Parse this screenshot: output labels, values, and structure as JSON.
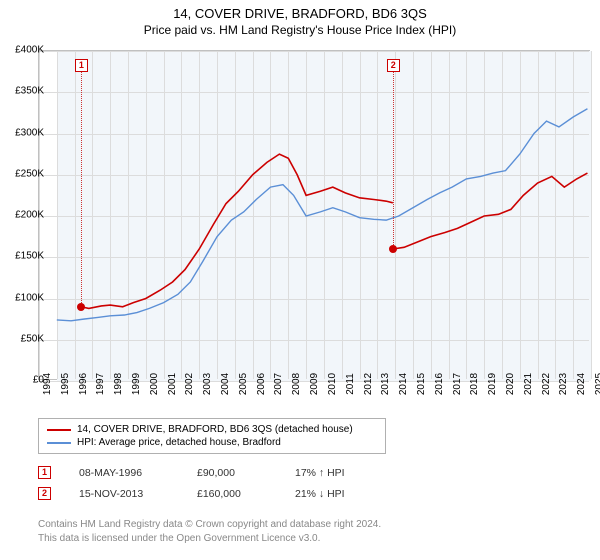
{
  "title": "14, COVER DRIVE, BRADFORD, BD6 3QS",
  "subtitle": "Price paid vs. HM Land Registry's House Price Index (HPI)",
  "chart": {
    "type": "line",
    "background_color": "#f2f6fa",
    "grid_color": "#dcdcdc",
    "border_color": "#c0c0c0",
    "x_start": 1994,
    "x_end": 2025,
    "y_min": 0,
    "y_max": 400000,
    "y_tick_step": 50000,
    "y_tick_labels": [
      "£0",
      "£50K",
      "£100K",
      "£150K",
      "£200K",
      "£250K",
      "£300K",
      "£350K",
      "£400K"
    ],
    "x_ticks": [
      1994,
      1995,
      1996,
      1997,
      1998,
      1999,
      2000,
      2001,
      2002,
      2003,
      2004,
      2005,
      2006,
      2007,
      2008,
      2009,
      2010,
      2011,
      2012,
      2013,
      2014,
      2015,
      2016,
      2017,
      2018,
      2019,
      2020,
      2021,
      2022,
      2023,
      2024,
      2025
    ],
    "series": [
      {
        "name": "14, COVER DRIVE, BRADFORD, BD6 3QS (detached house)",
        "color": "#cc0000",
        "width": 1.6,
        "segments": [
          [
            [
              1996.35,
              90000
            ],
            [
              1996.8,
              88000
            ],
            [
              1997.5,
              91000
            ],
            [
              1998,
              92000
            ],
            [
              1998.7,
              90000
            ],
            [
              1999.3,
              95000
            ],
            [
              2000,
              100000
            ],
            [
              2000.8,
              110000
            ],
            [
              2001.5,
              120000
            ],
            [
              2002.2,
              135000
            ],
            [
              2003,
              160000
            ],
            [
              2003.8,
              190000
            ],
            [
              2004.5,
              215000
            ],
            [
              2005.2,
              230000
            ],
            [
              2006,
              250000
            ],
            [
              2006.8,
              265000
            ],
            [
              2007.5,
              275000
            ],
            [
              2008,
              270000
            ],
            [
              2008.5,
              250000
            ],
            [
              2009,
              225000
            ],
            [
              2009.8,
              230000
            ],
            [
              2010.5,
              235000
            ],
            [
              2011.2,
              228000
            ],
            [
              2012,
              222000
            ],
            [
              2012.8,
              220000
            ],
            [
              2013.5,
              218000
            ],
            [
              2013.87,
              216000
            ]
          ],
          [
            [
              2013.87,
              160000
            ],
            [
              2014.5,
              162000
            ],
            [
              2015.2,
              168000
            ],
            [
              2016,
              175000
            ],
            [
              2016.8,
              180000
            ],
            [
              2017.5,
              185000
            ],
            [
              2018.2,
              192000
            ],
            [
              2019,
              200000
            ],
            [
              2019.8,
              202000
            ],
            [
              2020.5,
              208000
            ],
            [
              2021.2,
              225000
            ],
            [
              2022,
              240000
            ],
            [
              2022.8,
              248000
            ],
            [
              2023.5,
              235000
            ],
            [
              2024.2,
              245000
            ],
            [
              2024.8,
              252000
            ]
          ]
        ]
      },
      {
        "name": "HPI: Average price, detached house, Bradford",
        "color": "#5b8fd6",
        "width": 1.4,
        "segments": [
          [
            [
              1995,
              74000
            ],
            [
              1995.8,
              73000
            ],
            [
              1996.5,
              75000
            ],
            [
              1997.3,
              77000
            ],
            [
              1998,
              79000
            ],
            [
              1998.8,
              80000
            ],
            [
              1999.5,
              83000
            ],
            [
              2000.2,
              88000
            ],
            [
              2001,
              95000
            ],
            [
              2001.8,
              105000
            ],
            [
              2002.5,
              120000
            ],
            [
              2003.2,
              145000
            ],
            [
              2004,
              175000
            ],
            [
              2004.8,
              195000
            ],
            [
              2005.5,
              205000
            ],
            [
              2006.2,
              220000
            ],
            [
              2007,
              235000
            ],
            [
              2007.7,
              238000
            ],
            [
              2008.3,
              225000
            ],
            [
              2009,
              200000
            ],
            [
              2009.8,
              205000
            ],
            [
              2010.5,
              210000
            ],
            [
              2011.2,
              205000
            ],
            [
              2012,
              198000
            ],
            [
              2012.8,
              196000
            ],
            [
              2013.5,
              195000
            ],
            [
              2014.2,
              200000
            ],
            [
              2015,
              210000
            ],
            [
              2015.8,
              220000
            ],
            [
              2016.5,
              228000
            ],
            [
              2017.2,
              235000
            ],
            [
              2018,
              245000
            ],
            [
              2018.8,
              248000
            ],
            [
              2019.5,
              252000
            ],
            [
              2020.2,
              255000
            ],
            [
              2021,
              275000
            ],
            [
              2021.8,
              300000
            ],
            [
              2022.5,
              315000
            ],
            [
              2023.2,
              308000
            ],
            [
              2024,
              320000
            ],
            [
              2024.8,
              330000
            ]
          ]
        ]
      }
    ],
    "sale_markers": [
      {
        "num": "1",
        "year": 1996.35,
        "value": 90000
      },
      {
        "num": "2",
        "year": 2013.87,
        "value": 160000
      }
    ]
  },
  "legend": [
    {
      "color": "#cc0000",
      "label": "14, COVER DRIVE, BRADFORD, BD6 3QS (detached house)"
    },
    {
      "color": "#5b8fd6",
      "label": "HPI: Average price, detached house, Bradford"
    }
  ],
  "sales_rows": [
    {
      "num": "1",
      "date": "08-MAY-1996",
      "price": "£90,000",
      "diff": "17% ↑ HPI"
    },
    {
      "num": "2",
      "date": "15-NOV-2013",
      "price": "£160,000",
      "diff": "21% ↓ HPI"
    }
  ],
  "footer_line1": "Contains HM Land Registry data © Crown copyright and database right 2024.",
  "footer_line2": "This data is licensed under the Open Government Licence v3.0."
}
